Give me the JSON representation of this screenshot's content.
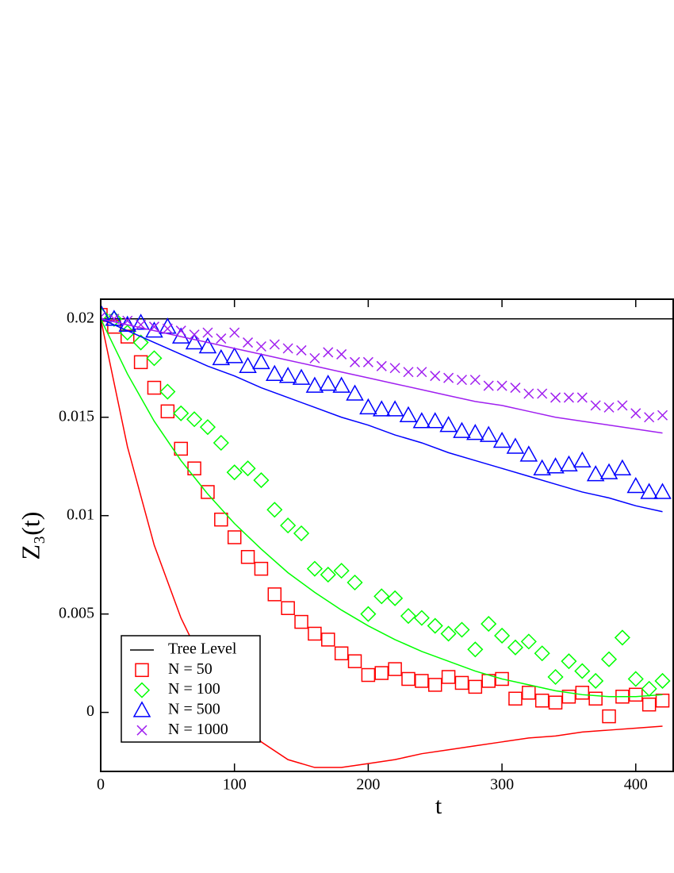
{
  "chart_data": {
    "type": "scatter",
    "xlabel": "t",
    "ylabel": "Z₃(t)",
    "xlim": [
      0,
      428
    ],
    "ylim": [
      -0.003,
      0.021
    ],
    "xticks": [
      0,
      100,
      200,
      300,
      400
    ],
    "yticks": [
      0,
      0.005,
      0.01,
      0.015,
      0.02
    ],
    "legend": "lower left",
    "series": [
      {
        "name": "Tree Level",
        "color": "#000000",
        "marker": "line",
        "x": [
          0,
          428
        ],
        "values": [
          0.02,
          0.02
        ]
      },
      {
        "name": "N = 50",
        "color": "#ff0000",
        "marker": "square",
        "x": [
          0,
          10,
          20,
          30,
          40,
          50,
          60,
          70,
          80,
          90,
          100,
          110,
          120,
          130,
          140,
          150,
          160,
          170,
          180,
          190,
          200,
          210,
          220,
          230,
          240,
          250,
          260,
          270,
          280,
          290,
          300,
          310,
          320,
          330,
          340,
          350,
          360,
          370,
          380,
          390,
          400,
          410,
          420
        ],
        "values": [
          0.0202,
          0.0196,
          0.0191,
          0.0178,
          0.0165,
          0.0153,
          0.0134,
          0.0124,
          0.0112,
          0.0098,
          0.0089,
          0.0079,
          0.0073,
          0.006,
          0.0053,
          0.0046,
          0.004,
          0.0037,
          0.003,
          0.0026,
          0.0019,
          0.002,
          0.0022,
          0.0017,
          0.0016,
          0.0014,
          0.0018,
          0.0015,
          0.0013,
          0.0016,
          0.0017,
          0.0007,
          0.001,
          0.0006,
          0.0005,
          0.0008,
          0.001,
          0.0007,
          -0.0002,
          0.0008,
          0.0009,
          0.0004,
          0.0006
        ]
      },
      {
        "name": "N = 100",
        "color": "#00ff00",
        "marker": "diamond",
        "x": [
          0,
          10,
          20,
          30,
          40,
          50,
          60,
          70,
          80,
          90,
          100,
          110,
          120,
          130,
          140,
          150,
          160,
          170,
          180,
          190,
          200,
          210,
          220,
          230,
          240,
          250,
          260,
          270,
          280,
          290,
          300,
          310,
          320,
          330,
          340,
          350,
          360,
          370,
          380,
          390,
          400,
          410,
          420
        ],
        "values": [
          0.0202,
          0.02,
          0.0193,
          0.0188,
          0.018,
          0.0163,
          0.0152,
          0.0149,
          0.0145,
          0.0137,
          0.0122,
          0.0124,
          0.0118,
          0.0103,
          0.0095,
          0.0091,
          0.0073,
          0.007,
          0.0072,
          0.0066,
          0.005,
          0.0059,
          0.0058,
          0.0049,
          0.0048,
          0.0044,
          0.004,
          0.0042,
          0.0032,
          0.0045,
          0.0039,
          0.0033,
          0.0036,
          0.003,
          0.0018,
          0.0026,
          0.0021,
          0.0016,
          0.0027,
          0.0038,
          0.0017,
          0.0012,
          0.0016
        ]
      },
      {
        "name": "N = 500",
        "color": "#0000ff",
        "marker": "triangle",
        "x": [
          0,
          10,
          20,
          30,
          40,
          50,
          60,
          70,
          80,
          90,
          100,
          110,
          120,
          130,
          140,
          150,
          160,
          170,
          180,
          190,
          200,
          210,
          220,
          230,
          240,
          250,
          260,
          270,
          280,
          290,
          300,
          310,
          320,
          330,
          340,
          350,
          360,
          370,
          380,
          390,
          400,
          410,
          420
        ],
        "values": [
          0.0203,
          0.02,
          0.0197,
          0.0198,
          0.0194,
          0.0196,
          0.0191,
          0.0188,
          0.0186,
          0.018,
          0.0181,
          0.0176,
          0.0178,
          0.0172,
          0.0171,
          0.017,
          0.0166,
          0.0167,
          0.0166,
          0.0162,
          0.0155,
          0.0154,
          0.0154,
          0.0151,
          0.0148,
          0.0148,
          0.0146,
          0.0143,
          0.0142,
          0.0141,
          0.0138,
          0.0135,
          0.0131,
          0.0124,
          0.0125,
          0.0126,
          0.0128,
          0.0121,
          0.0122,
          0.0124,
          0.0115,
          0.0112,
          0.0112
        ]
      },
      {
        "name": "N = 1000",
        "color": "#a020f0",
        "marker": "cross",
        "x": [
          0,
          10,
          20,
          30,
          40,
          50,
          60,
          70,
          80,
          90,
          100,
          110,
          120,
          130,
          140,
          150,
          160,
          170,
          180,
          190,
          200,
          210,
          220,
          230,
          240,
          250,
          260,
          270,
          280,
          290,
          300,
          310,
          320,
          330,
          340,
          350,
          360,
          370,
          380,
          390,
          400,
          410,
          420
        ],
        "values": [
          0.0201,
          0.02,
          0.0199,
          0.0197,
          0.0196,
          0.0195,
          0.0194,
          0.0192,
          0.0193,
          0.019,
          0.0193,
          0.0188,
          0.0186,
          0.0187,
          0.0185,
          0.0184,
          0.018,
          0.0183,
          0.0182,
          0.0178,
          0.0178,
          0.0176,
          0.0175,
          0.0173,
          0.0173,
          0.0171,
          0.017,
          0.0169,
          0.0169,
          0.0166,
          0.0166,
          0.0165,
          0.0162,
          0.0162,
          0.016,
          0.016,
          0.016,
          0.0156,
          0.0155,
          0.0156,
          0.0152,
          0.015,
          0.0151
        ]
      },
      {
        "color": "#ff0000",
        "marker": "line",
        "x": [
          0,
          20,
          40,
          60,
          80,
          100,
          120,
          140,
          160,
          180,
          200,
          220,
          240,
          260,
          280,
          300,
          320,
          340,
          360,
          380,
          400,
          420
        ],
        "values": [
          0.02,
          0.0135,
          0.0085,
          0.0048,
          0.002,
          0.0003,
          -0.0015,
          -0.0024,
          -0.0028,
          -0.0028,
          -0.0026,
          -0.0024,
          -0.0021,
          -0.0019,
          -0.0017,
          -0.0015,
          -0.0013,
          -0.0012,
          -0.001,
          -0.0009,
          -0.0008,
          -0.0007
        ]
      },
      {
        "color": "#00ff00",
        "marker": "line",
        "x": [
          0,
          20,
          40,
          60,
          80,
          100,
          120,
          140,
          160,
          180,
          200,
          220,
          240,
          260,
          280,
          300,
          320,
          340,
          360,
          380,
          400,
          420
        ],
        "values": [
          0.02,
          0.0172,
          0.0148,
          0.0128,
          0.0111,
          0.0096,
          0.0083,
          0.0071,
          0.0061,
          0.0052,
          0.0044,
          0.0037,
          0.0031,
          0.0026,
          0.0021,
          0.0017,
          0.0014,
          0.0011,
          0.0009,
          0.0008,
          0.0008,
          0.0009
        ]
      },
      {
        "color": "#0000ff",
        "marker": "line",
        "x": [
          0,
          20,
          40,
          60,
          80,
          100,
          120,
          140,
          160,
          180,
          200,
          220,
          240,
          260,
          280,
          300,
          320,
          340,
          360,
          380,
          400,
          420
        ],
        "values": [
          0.02,
          0.0194,
          0.0188,
          0.0182,
          0.0176,
          0.0171,
          0.0165,
          0.016,
          0.0155,
          0.015,
          0.0146,
          0.0141,
          0.0137,
          0.0132,
          0.0128,
          0.0124,
          0.012,
          0.0116,
          0.0112,
          0.0109,
          0.0105,
          0.0102
        ]
      },
      {
        "color": "#a020f0",
        "marker": "line",
        "x": [
          0,
          20,
          40,
          60,
          80,
          100,
          120,
          140,
          160,
          180,
          200,
          220,
          240,
          260,
          280,
          300,
          320,
          340,
          360,
          380,
          400,
          420
        ],
        "values": [
          0.02,
          0.0197,
          0.0194,
          0.0191,
          0.0188,
          0.0185,
          0.0182,
          0.0179,
          0.0176,
          0.0173,
          0.017,
          0.0167,
          0.0164,
          0.0161,
          0.0158,
          0.0156,
          0.0153,
          0.015,
          0.0148,
          0.0146,
          0.0144,
          0.0142
        ]
      }
    ]
  }
}
